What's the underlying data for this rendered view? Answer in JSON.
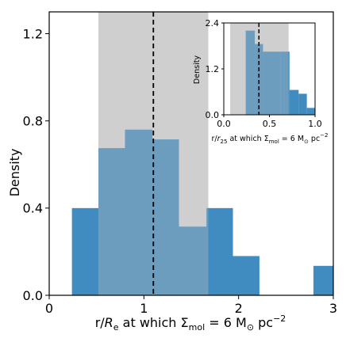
{
  "chart_data": [
    {
      "type": "histogram",
      "xlabel_parts": {
        "base": "r/",
        "var": "R",
        "sub": "e",
        "mid": " at which Σ",
        "sub2": "mol",
        "end": " = 6 M",
        "sun": "⊙",
        "unit": " pc",
        "exp": "−2"
      },
      "ylabel": "Density",
      "xlim": [
        0,
        3
      ],
      "ylim": [
        0,
        1.3
      ],
      "xticks": [
        0,
        1,
        2,
        3
      ],
      "yticks": [
        0.0,
        0.4,
        0.8,
        1.2
      ],
      "xtick_labels": [
        "0",
        "1",
        "2",
        "3"
      ],
      "ytick_labels": [
        "0.0",
        "0.4",
        "0.8",
        "1.2"
      ],
      "shaded_region": [
        0.52,
        1.68
      ],
      "median_line": 1.1,
      "bins": [
        {
          "x0": 0.24,
          "x1": 0.52,
          "value": 0.4
        },
        {
          "x0": 0.52,
          "x1": 0.8,
          "value": 0.675
        },
        {
          "x0": 0.8,
          "x1": 1.09,
          "value": 0.76
        },
        {
          "x0": 1.09,
          "x1": 1.37,
          "value": 0.715
        },
        {
          "x0": 1.37,
          "x1": 1.66,
          "value": 0.315
        },
        {
          "x0": 1.66,
          "x1": 1.94,
          "value": 0.4
        },
        {
          "x0": 1.94,
          "x1": 2.22,
          "value": 0.18
        },
        {
          "x0": 2.22,
          "x1": 2.51,
          "value": 0.0
        },
        {
          "x0": 2.51,
          "x1": 2.79,
          "value": 0.0
        },
        {
          "x0": 2.79,
          "x1": 3.07,
          "value": 0.135
        }
      ],
      "bar_color": "#1f77b4",
      "shade_color": "#cccccc"
    },
    {
      "type": "histogram",
      "xlabel_parts": {
        "base": "r/",
        "var": "r",
        "sub": "25",
        "mid": " at which Σ",
        "sub2": "mol",
        "end": " = 6 M",
        "sun": "⊙",
        "unit": " pc",
        "exp": "−2"
      },
      "ylabel": "Density",
      "xlim": [
        0,
        1
      ],
      "ylim": [
        0,
        2.4
      ],
      "xticks": [
        0,
        0.5,
        1.0
      ],
      "yticks": [
        0.0,
        1.2,
        2.4
      ],
      "xtick_labels": [
        "0.0",
        "0.5",
        "1.0"
      ],
      "ytick_labels": [
        "0.0",
        "1.2",
        "2.4"
      ],
      "shaded_region": [
        0.07,
        0.71
      ],
      "median_line": 0.385,
      "bins": [
        {
          "x0": 0.24,
          "x1": 0.34,
          "value": 2.2
        },
        {
          "x0": 0.34,
          "x1": 0.43,
          "value": 1.85
        },
        {
          "x0": 0.43,
          "x1": 0.62,
          "value": 1.65
        },
        {
          "x0": 0.62,
          "x1": 0.72,
          "value": 1.65
        },
        {
          "x0": 0.72,
          "x1": 0.82,
          "value": 0.65
        },
        {
          "x0": 0.82,
          "x1": 0.91,
          "value": 0.55
        },
        {
          "x0": 0.91,
          "x1": 1.0,
          "value": 0.18
        }
      ],
      "bar_color": "#1f77b4",
      "shade_color": "#cccccc"
    }
  ]
}
